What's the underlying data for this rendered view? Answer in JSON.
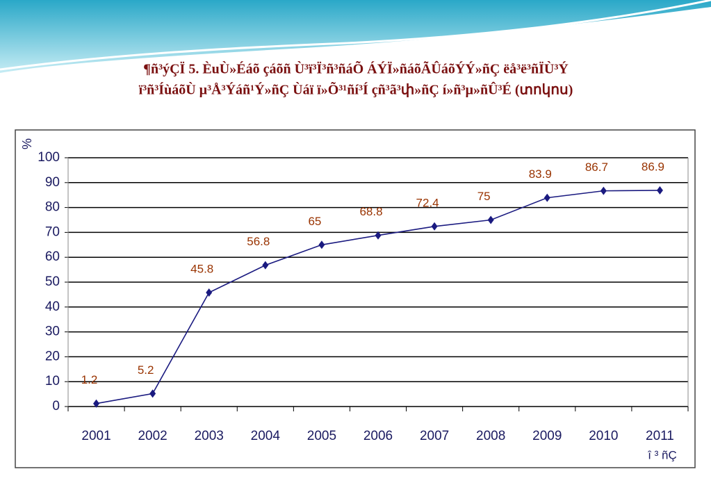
{
  "chart_data": {
    "type": "line",
    "title": [
      "¶ñ³ýÇÏ 5. ÈuÙ»Éáõ çáõñ Ù³ï³Ï³ñ³ñáÕ ÁÝÏ»ñáõÃÛáõÝÝ»ñÇ ëå³ë³ñÏÙ³Ý",
      "ï³ñ³ÍùáõÙ µ³Å³Ýáñ¹Ý»ñÇ Ùáï ï»Õ³¹ñí³Í çñ³ã³փ»ñÇ í»ñ³µ»ñÛ³É (տոկոս)"
    ],
    "y_label": "%",
    "x_label": "î ³  ñÇ",
    "categories": [
      "2001",
      "2002",
      "2003",
      "2004",
      "2005",
      "2006",
      "2007",
      "2008",
      "2009",
      "2010",
      "2011"
    ],
    "values": [
      1.2,
      5.2,
      45.8,
      56.8,
      65,
      68.8,
      72.4,
      75,
      83.9,
      86.7,
      86.9
    ],
    "color": "#1a1a80",
    "label_color": "#993300",
    "ylim": [
      0,
      100
    ],
    "yticks": [
      0,
      10,
      20,
      30,
      40,
      50,
      60,
      70,
      80,
      90,
      100
    ],
    "grid": true
  }
}
